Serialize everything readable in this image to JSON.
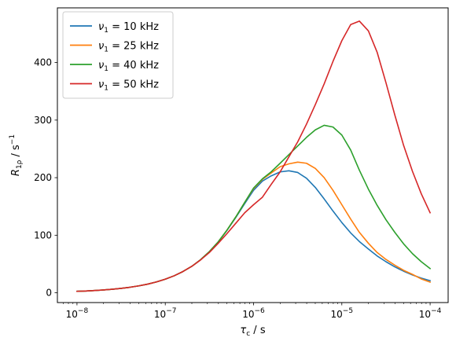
{
  "chart_data": {
    "type": "line",
    "xscale": "log",
    "xlim": [
      6e-09,
      0.00016
    ],
    "ylim": [
      -17,
      495
    ],
    "xlabel": {
      "base": "τ",
      "sub": "c",
      "rest": " / s"
    },
    "ylabel": {
      "base": "R",
      "sub": "1ρ",
      "rest": " / s",
      "sup": "−1"
    },
    "yticks": [
      0,
      100,
      200,
      300,
      400
    ],
    "xticks": [
      {
        "value": 1e-08,
        "base": "10",
        "exp": "−8"
      },
      {
        "value": 1e-07,
        "base": "10",
        "exp": "−7"
      },
      {
        "value": 1e-06,
        "base": "10",
        "exp": "−6"
      },
      {
        "value": 1e-05,
        "base": "10",
        "exp": "−5"
      },
      {
        "value": 0.0001,
        "base": "10",
        "exp": "−4"
      }
    ],
    "grid": false,
    "legend_position": "top-left",
    "x": [
      1e-08,
      1.26e-08,
      1.58e-08,
      2e-08,
      2.51e-08,
      3.16e-08,
      3.98e-08,
      5.01e-08,
      6.31e-08,
      7.94e-08,
      1e-07,
      1.26e-07,
      1.58e-07,
      2e-07,
      2.51e-07,
      3.16e-07,
      3.98e-07,
      5.01e-07,
      6.31e-07,
      7.94e-07,
      1e-06,
      1.26e-06,
      1.58e-06,
      2e-06,
      2.51e-06,
      3.16e-06,
      3.98e-06,
      5.01e-06,
      6.31e-06,
      7.94e-06,
      1e-05,
      1.26e-05,
      1.58e-05,
      2e-05,
      2.51e-05,
      3.16e-05,
      3.98e-05,
      5.01e-05,
      6.31e-05,
      7.94e-05,
      0.0001
    ],
    "series": [
      {
        "name": {
          "sym": "ν",
          "sub": "1",
          "rest": " = 10 kHz"
        },
        "color": "#1f77b4",
        "values": [
          2.5,
          3.1,
          3.9,
          4.9,
          6.1,
          7.6,
          9.6,
          12.0,
          15.0,
          18.8,
          23.6,
          29.5,
          36.8,
          46.0,
          57.4,
          71.5,
          88.5,
          108.5,
          131.0,
          155.0,
          178.0,
          194.0,
          203.0,
          210.0,
          212.0,
          209.0,
          199.0,
          183.0,
          163.0,
          142.0,
          122.0,
          104.0,
          89.0,
          76.0,
          64.0,
          54.0,
          45.0,
          37.5,
          31.0,
          25.5,
          21.0
        ]
      },
      {
        "name": {
          "sym": "ν",
          "sub": "1",
          "rest": " = 25 kHz"
        },
        "color": "#ff7f0e",
        "values": [
          2.5,
          3.1,
          3.9,
          4.9,
          6.1,
          7.6,
          9.6,
          12.0,
          15.0,
          18.8,
          23.6,
          29.5,
          36.8,
          46.0,
          57.4,
          71.5,
          88.5,
          109.0,
          132.0,
          157.0,
          181.0,
          197.0,
          208.0,
          219.0,
          224.0,
          227.0,
          225.0,
          216.0,
          200.0,
          178.0,
          153.0,
          128.0,
          105.0,
          86.0,
          70.0,
          58.0,
          48.0,
          39.0,
          32.0,
          24.0,
          18.5
        ]
      },
      {
        "name": {
          "sym": "ν",
          "sub": "1",
          "rest": " = 40 kHz"
        },
        "color": "#2ca02c",
        "values": [
          2.5,
          3.1,
          3.9,
          4.9,
          6.1,
          7.6,
          9.6,
          12.0,
          15.0,
          18.8,
          23.6,
          29.5,
          36.8,
          46.0,
          57.4,
          71.5,
          88.5,
          109.0,
          132.0,
          157.0,
          182.0,
          198.0,
          210.0,
          225.0,
          240.0,
          255.0,
          270.0,
          283.0,
          291.0,
          288.0,
          274.0,
          248.0,
          213.0,
          180.0,
          152.0,
          127.0,
          105.0,
          85.0,
          68.0,
          54.0,
          42.0
        ]
      },
      {
        "name": {
          "sym": "ν",
          "sub": "1",
          "rest": " = 50 kHz"
        },
        "color": "#d62728",
        "values": [
          2.5,
          3.1,
          3.9,
          4.9,
          6.1,
          7.6,
          9.6,
          12.0,
          15.0,
          18.8,
          23.6,
          29.5,
          36.8,
          46.0,
          57.0,
          70.0,
          86.0,
          103.0,
          121.0,
          139.0,
          153.0,
          166.0,
          188.0,
          210.0,
          236.0,
          262.0,
          293.0,
          327.0,
          363.0,
          402.0,
          438.0,
          466.0,
          472.0,
          455.0,
          418.0,
          365.0,
          309.0,
          256.0,
          211.0,
          172.0,
          139.0
        ]
      }
    ]
  }
}
